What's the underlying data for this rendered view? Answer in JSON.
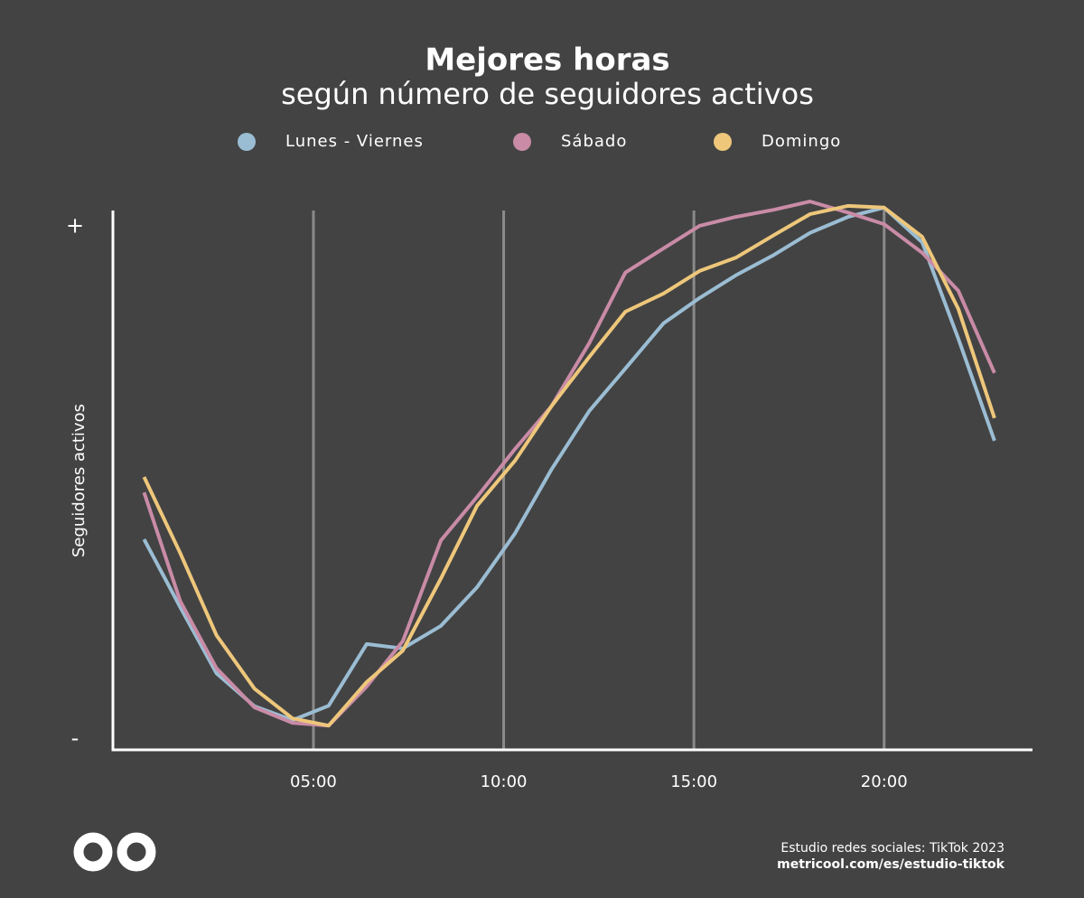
{
  "chart_data": {
    "type": "line",
    "title": "Mejores horas",
    "subtitle": "según número de seguidores activos",
    "y_label": "Seguidores activos",
    "x": [
      0.55,
      1.5,
      2.45,
      3.45,
      4.45,
      5.4,
      6.4,
      7.35,
      8.35,
      9.3,
      10.3,
      11.25,
      12.25,
      13.2,
      14.2,
      15.15,
      16.1,
      17.1,
      18.05,
      19.05,
      20.0,
      21.0,
      21.95,
      22.9
    ],
    "xlim": [
      -0.27,
      23.9
    ],
    "xticks": [
      {
        "value": 5,
        "label": "05:00"
      },
      {
        "value": 10,
        "label": "10:00"
      },
      {
        "value": 15,
        "label": "15:00"
      },
      {
        "value": 20,
        "label": "20:00"
      }
    ],
    "ylim": [
      0,
      100
    ],
    "yticks": [
      {
        "value": 95,
        "label": "+"
      },
      {
        "value": 2,
        "label": "-"
      }
    ],
    "grid": true,
    "series": [
      {
        "name": "Lunes - Viernes",
        "color": "#9bbdd3",
        "values": [
          38.2,
          25.9,
          13.9,
          7.9,
          5.4,
          8.0,
          19.2,
          18.4,
          22.5,
          29.5,
          39.3,
          50.8,
          61.5,
          69.2,
          77.4,
          82.0,
          86.1,
          89.8,
          93.8,
          96.7,
          98.4,
          92.1,
          74.6,
          56.1
        ]
      },
      {
        "name": "Sábado",
        "color": "#c98ba6",
        "values": [
          46.7,
          27.0,
          14.8,
          7.7,
          4.9,
          4.4,
          11.5,
          19.7,
          38.0,
          45.9,
          54.6,
          62.3,
          73.8,
          86.6,
          91.0,
          95.1,
          96.7,
          98.0,
          99.5,
          97.5,
          95.4,
          90.2,
          83.3,
          68.4
        ]
      },
      {
        "name": "Domingo",
        "color": "#eec77b",
        "values": [
          49.5,
          35.7,
          20.8,
          11.1,
          5.7,
          4.4,
          12.3,
          18.0,
          31.1,
          44.3,
          52.5,
          62.3,
          71.3,
          79.5,
          82.8,
          86.9,
          89.3,
          93.4,
          97.2,
          98.7,
          98.4,
          93.1,
          80.0,
          60.2
        ]
      }
    ],
    "source": "Estudio redes sociales: TikTok 2023",
    "source_url": "metricool.com/es/estudio-tiktok"
  }
}
